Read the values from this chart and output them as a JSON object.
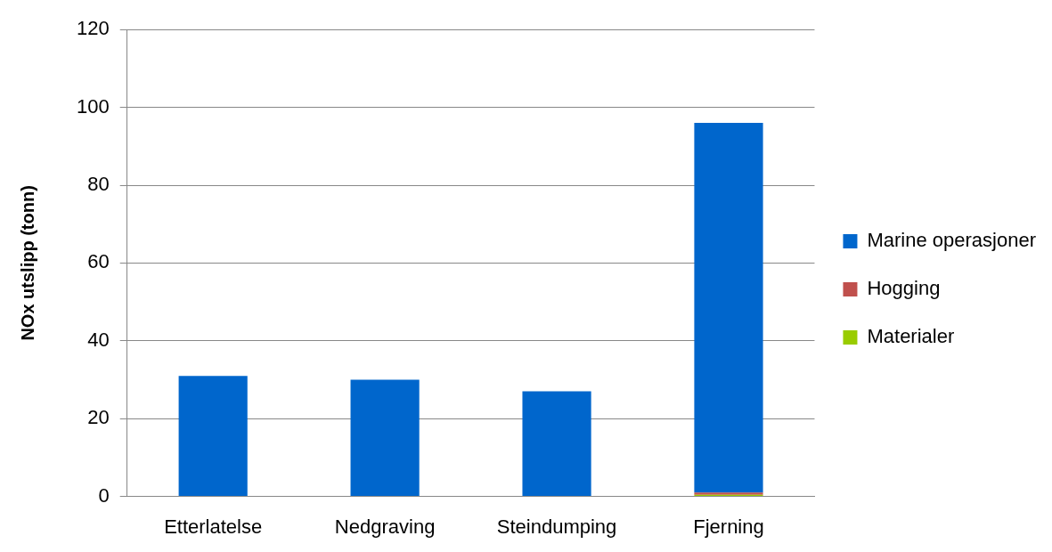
{
  "chart_data": {
    "type": "bar",
    "ylabel": "NOx utslipp (tonn)",
    "categories": [
      "Etterlatelse",
      "Nedgraving",
      "Steindumping",
      "Fjerning"
    ],
    "series": [
      {
        "name": "Materialer",
        "color": "#99cc00",
        "values": [
          0,
          0,
          0,
          0.4
        ]
      },
      {
        "name": "Hogging",
        "color": "#c0504d",
        "values": [
          0,
          0,
          0,
          0.6
        ]
      },
      {
        "name": "Marine operasjoner",
        "color": "#0066cc",
        "values": [
          31,
          30,
          27,
          95
        ]
      }
    ],
    "stacked": true,
    "ylim": [
      0,
      120
    ],
    "yticks": [
      0,
      20,
      40,
      60,
      80,
      100,
      120
    ],
    "grid": "y",
    "legend": "right"
  }
}
